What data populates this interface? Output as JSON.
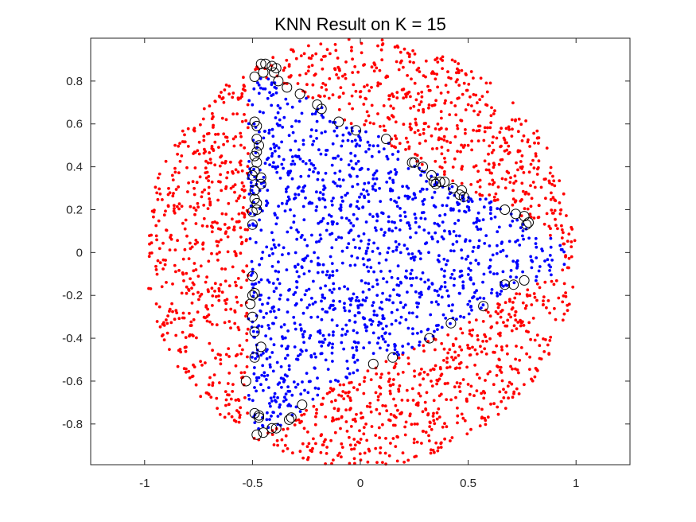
{
  "chart_data": {
    "type": "scatter",
    "title": "KNN Result on K = 15",
    "xlim": [
      -1.25,
      1.25
    ],
    "ylim": [
      -0.99,
      1.0
    ],
    "xticks": [
      -1,
      -0.5,
      0,
      0.5,
      1
    ],
    "xtick_labels": [
      "-1",
      "-0.5",
      "0",
      "0.5",
      "1"
    ],
    "yticks": [
      -0.8,
      -0.6,
      -0.4,
      -0.2,
      0,
      0.2,
      0.4,
      0.6,
      0.8
    ],
    "ytick_labels": [
      "-0.8",
      "-0.6",
      "-0.4",
      "-0.2",
      "0",
      "0.2",
      "0.4",
      "0.6",
      "0.8"
    ],
    "grid": false,
    "legend": "none",
    "region": {
      "shape": "disk",
      "radius": 1.0,
      "outer_class_color": "#ff0000",
      "inner_class_color": "#0000ff"
    },
    "inner_boundary": [
      [
        -0.52,
        0.98
      ],
      [
        -0.5,
        0.85
      ],
      [
        -0.45,
        0.82
      ],
      [
        -0.3,
        0.76
      ],
      [
        -0.18,
        0.68
      ],
      [
        -0.05,
        0.6
      ],
      [
        0.08,
        0.55
      ],
      [
        0.18,
        0.47
      ],
      [
        0.3,
        0.4
      ],
      [
        0.45,
        0.32
      ],
      [
        0.6,
        0.24
      ],
      [
        0.75,
        0.16
      ],
      [
        0.85,
        0.1
      ],
      [
        0.95,
        0.02
      ],
      [
        0.95,
        -0.06
      ],
      [
        0.85,
        -0.13
      ],
      [
        0.7,
        -0.17
      ],
      [
        0.58,
        -0.25
      ],
      [
        0.5,
        -0.3
      ],
      [
        0.38,
        -0.38
      ],
      [
        0.3,
        -0.42
      ],
      [
        0.18,
        -0.48
      ],
      [
        0.05,
        -0.52
      ],
      [
        -0.05,
        -0.58
      ],
      [
        -0.15,
        -0.64
      ],
      [
        -0.25,
        -0.72
      ],
      [
        -0.35,
        -0.8
      ],
      [
        -0.45,
        -0.85
      ],
      [
        -0.5,
        -0.87
      ],
      [
        -0.52,
        -0.7
      ],
      [
        -0.52,
        -0.4
      ],
      [
        -0.52,
        -0.1
      ],
      [
        -0.52,
        0.2
      ],
      [
        -0.52,
        0.5
      ],
      [
        -0.52,
        0.7
      ]
    ],
    "misclassified": [
      [
        -0.46,
        0.88
      ],
      [
        -0.44,
        0.88
      ],
      [
        -0.41,
        0.87
      ],
      [
        -0.39,
        0.86
      ],
      [
        -0.4,
        0.84
      ],
      [
        -0.45,
        0.84
      ],
      [
        -0.49,
        0.82
      ],
      [
        -0.38,
        0.8
      ],
      [
        -0.34,
        0.77
      ],
      [
        -0.28,
        0.74
      ],
      [
        -0.2,
        0.69
      ],
      [
        -0.18,
        0.67
      ],
      [
        -0.1,
        0.61
      ],
      [
        -0.02,
        0.57
      ],
      [
        0.12,
        0.53
      ],
      [
        -0.49,
        0.61
      ],
      [
        -0.48,
        0.59
      ],
      [
        -0.48,
        0.53
      ],
      [
        -0.47,
        0.5
      ],
      [
        -0.48,
        0.47
      ],
      [
        -0.49,
        0.45
      ],
      [
        -0.48,
        0.42
      ],
      [
        -0.49,
        0.38
      ],
      [
        -0.5,
        0.36
      ],
      [
        -0.46,
        0.35
      ],
      [
        -0.46,
        0.32
      ],
      [
        -0.49,
        0.29
      ],
      [
        -0.49,
        0.25
      ],
      [
        -0.48,
        0.23
      ],
      [
        -0.48,
        0.2
      ],
      [
        -0.5,
        0.19
      ],
      [
        -0.5,
        0.13
      ],
      [
        0.24,
        0.42
      ],
      [
        0.25,
        0.42
      ],
      [
        0.29,
        0.4
      ],
      [
        0.33,
        0.36
      ],
      [
        0.34,
        0.33
      ],
      [
        0.35,
        0.32
      ],
      [
        0.37,
        0.33
      ],
      [
        0.39,
        0.33
      ],
      [
        0.43,
        0.3
      ],
      [
        0.47,
        0.29
      ],
      [
        0.46,
        0.27
      ],
      [
        0.48,
        0.26
      ],
      [
        0.67,
        0.2
      ],
      [
        0.72,
        0.18
      ],
      [
        0.76,
        0.17
      ],
      [
        0.78,
        0.14
      ],
      [
        0.77,
        0.13
      ],
      [
        -0.5,
        -0.11
      ],
      [
        -0.49,
        -0.19
      ],
      [
        -0.5,
        -0.2
      ],
      [
        -0.51,
        -0.24
      ],
      [
        -0.5,
        -0.3
      ],
      [
        -0.49,
        -0.37
      ],
      [
        -0.46,
        -0.44
      ],
      [
        -0.49,
        -0.49
      ],
      [
        0.67,
        -0.15
      ],
      [
        0.71,
        -0.15
      ],
      [
        0.76,
        -0.13
      ],
      [
        0.57,
        -0.25
      ],
      [
        0.42,
        -0.33
      ],
      [
        0.32,
        -0.4
      ],
      [
        0.15,
        -0.49
      ],
      [
        0.06,
        -0.52
      ],
      [
        -0.53,
        -0.6
      ],
      [
        -0.49,
        -0.75
      ],
      [
        -0.47,
        -0.76
      ],
      [
        -0.47,
        -0.77
      ],
      [
        -0.27,
        -0.71
      ],
      [
        -0.32,
        -0.77
      ],
      [
        -0.33,
        -0.78
      ],
      [
        -0.39,
        -0.82
      ],
      [
        -0.41,
        -0.82
      ],
      [
        -0.45,
        -0.84
      ],
      [
        -0.48,
        -0.85
      ]
    ]
  }
}
